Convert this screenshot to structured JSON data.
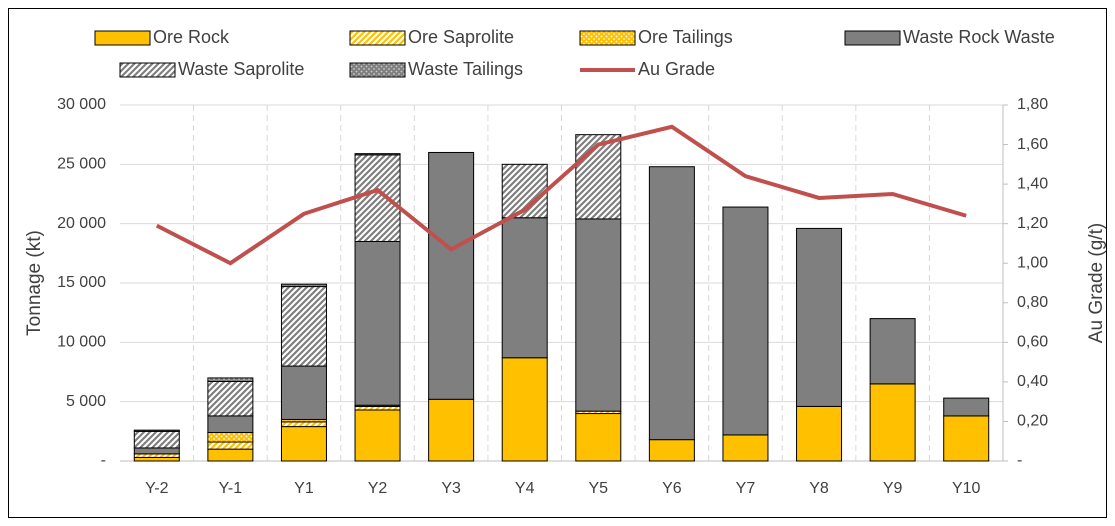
{
  "chart_data": {
    "type": "stacked-bar-line",
    "categories": [
      "Y-2",
      "Y-1",
      "Y1",
      "Y2",
      "Y3",
      "Y4",
      "Y5",
      "Y6",
      "Y7",
      "Y8",
      "Y9",
      "Y10"
    ],
    "series": [
      {
        "name": "Ore Rock",
        "color": "#ffc000",
        "pattern": "solid",
        "values": [
          300,
          1000,
          2900,
          4300,
          5200,
          8700,
          4000,
          1800,
          2200,
          4600,
          6500,
          3800
        ]
      },
      {
        "name": "Ore Saprolite",
        "color": "#ffc000",
        "pattern": "hatch",
        "values": [
          300,
          600,
          400,
          300,
          0,
          0,
          200,
          0,
          0,
          0,
          0,
          0
        ]
      },
      {
        "name": "Ore Tailings",
        "color": "#ffc000",
        "pattern": "dots",
        "values": [
          0,
          800,
          200,
          100,
          0,
          0,
          0,
          0,
          0,
          0,
          0,
          0
        ]
      },
      {
        "name": "Waste Rock Waste",
        "color": "#7f7f7f",
        "pattern": "solid",
        "values": [
          500,
          1400,
          4500,
          13800,
          20800,
          11800,
          16200,
          23000,
          19200,
          15000,
          5500,
          1500
        ]
      },
      {
        "name": "Waste Saprolite",
        "color": "#7f7f7f",
        "pattern": "hatch",
        "values": [
          1400,
          2900,
          6700,
          7300,
          0,
          4500,
          7100,
          0,
          0,
          0,
          0,
          0
        ]
      },
      {
        "name": "Waste Tailings",
        "color": "#7f7f7f",
        "pattern": "dots",
        "values": [
          100,
          300,
          200,
          100,
          0,
          0,
          0,
          0,
          0,
          0,
          0,
          0
        ]
      },
      {
        "name": "Au Grade",
        "color": "#c0504d",
        "type": "line",
        "axis": "y2",
        "values": [
          1.19,
          1.0,
          1.25,
          1.37,
          1.07,
          1.27,
          1.6,
          1.69,
          1.44,
          1.33,
          1.35,
          1.24
        ]
      }
    ],
    "ylabel": "Tonnage (kt)",
    "y2label": "Au Grade (g/t)",
    "ylim": [
      0,
      30000
    ],
    "yticks": [
      {
        "value": 0,
        "label": "-"
      },
      {
        "value": 5000,
        "label": "5 000"
      },
      {
        "value": 10000,
        "label": "10 000"
      },
      {
        "value": 15000,
        "label": "15 000"
      },
      {
        "value": 20000,
        "label": "20 000"
      },
      {
        "value": 25000,
        "label": "25 000"
      },
      {
        "value": 30000,
        "label": "30 000"
      }
    ],
    "y2lim": [
      0,
      1.8
    ],
    "y2ticks": [
      {
        "value": 0,
        "label": "-"
      },
      {
        "value": 0.2,
        "label": "0,20"
      },
      {
        "value": 0.4,
        "label": "0,40"
      },
      {
        "value": 0.6,
        "label": "0,60"
      },
      {
        "value": 0.8,
        "label": "0,80"
      },
      {
        "value": 1.0,
        "label": "1,00"
      },
      {
        "value": 1.2,
        "label": "1,20"
      },
      {
        "value": 1.4,
        "label": "1,40"
      },
      {
        "value": 1.6,
        "label": "1,60"
      },
      {
        "value": 1.8,
        "label": "1,80"
      }
    ],
    "grid": true,
    "legend": "top"
  }
}
